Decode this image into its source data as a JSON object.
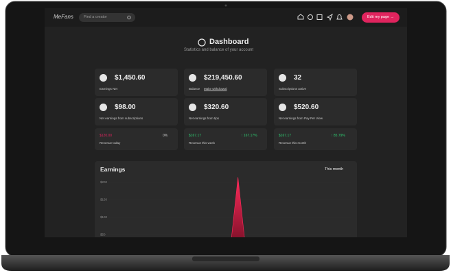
{
  "header": {
    "logo": "MeFans",
    "search_placeholder": "Find a creator",
    "button": "Edit my page →"
  },
  "dashboard": {
    "title": "Dashboard",
    "subtitle": "Statistics and balance of your account"
  },
  "cards": [
    {
      "value": "$1,450.60",
      "label": "Earnings Net"
    },
    {
      "value": "$219,450.60",
      "label": "Balance",
      "link": "Make withdrawal"
    },
    {
      "value": "32",
      "label": "Subscriptions active"
    },
    {
      "value": "$98.00",
      "label": "Net earnings from subscriptions"
    },
    {
      "value": "$320.60",
      "label": "Net earnings from tips"
    },
    {
      "value": "$520.60",
      "label": "Net earnings from Pay Per View"
    }
  ],
  "revenue": [
    {
      "value": "$120.00",
      "change": "0%",
      "label": "Revenue today"
    },
    {
      "value": "$167.17",
      "change": "↑ 167.17%",
      "label": "Revenue this week"
    },
    {
      "value": "$167.17",
      "change": "↑ 85.79%",
      "label": "Revenue this month"
    }
  ],
  "earnings": {
    "title": "Earnings",
    "period": "This month",
    "ylim": [
      0,
      220
    ],
    "yticks": [
      {
        "value": 200,
        "label": "$200"
      },
      {
        "value": 150,
        "label": "$150"
      },
      {
        "value": 100,
        "label": "$100"
      },
      {
        "value": 50,
        "label": "$50"
      }
    ],
    "values": [
      0,
      0,
      0,
      0,
      0,
      0,
      0,
      0,
      0,
      0,
      0,
      0,
      0,
      0,
      0,
      0,
      214,
      0,
      0,
      0,
      0,
      0,
      0,
      0,
      0,
      0,
      0,
      0,
      0,
      0,
      0
    ]
  }
}
